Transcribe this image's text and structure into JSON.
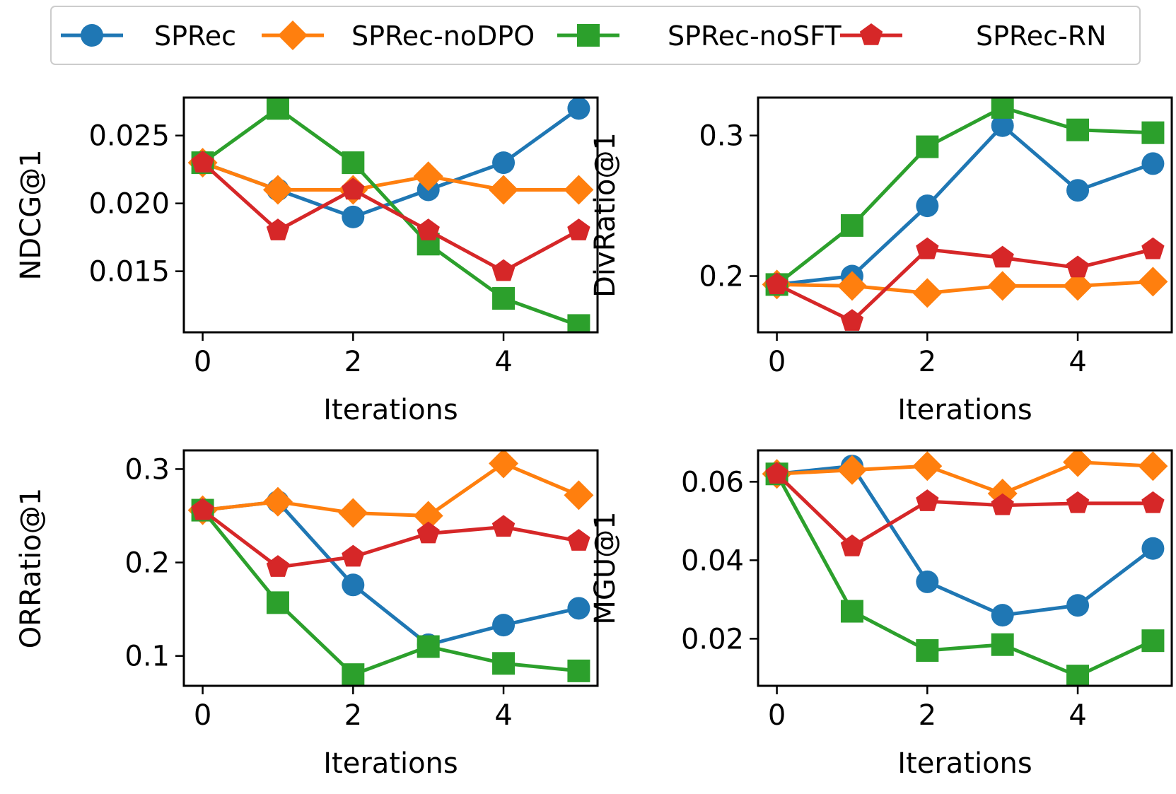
{
  "legend": {
    "placement": "top-center",
    "entries": [
      {
        "name": "SPRec",
        "color": "#1f77b4",
        "marker": "circle"
      },
      {
        "name": "SPRec-noDPO",
        "color": "#ff7f0e",
        "marker": "diamond"
      },
      {
        "name": "SPRec-noSFT",
        "color": "#2ca02c",
        "marker": "square"
      },
      {
        "name": "SPRec-RN",
        "color": "#d62728",
        "marker": "pentagon"
      }
    ]
  },
  "chart_data": [
    {
      "type": "line",
      "xlabel": "Iterations",
      "ylabel": "NDCG@1",
      "x": [
        0,
        1,
        2,
        3,
        4,
        5
      ],
      "xlim": [
        -0.25,
        5.25
      ],
      "ylim": [
        0.0105,
        0.0278
      ],
      "xticks": [
        0,
        2,
        4
      ],
      "xtick_labels": [
        "0",
        "2",
        "4"
      ],
      "yticks": [
        0.015,
        0.02,
        0.025
      ],
      "ytick_labels": [
        "0.015",
        "0.020",
        "0.025"
      ],
      "series": [
        {
          "name": "SPRec",
          "values": [
            0.023,
            0.021,
            0.019,
            0.021,
            0.023,
            0.027
          ]
        },
        {
          "name": "SPRec-noDPO",
          "values": [
            0.023,
            0.021,
            0.021,
            0.022,
            0.021,
            0.021
          ]
        },
        {
          "name": "SPRec-noSFT",
          "values": [
            0.023,
            0.027,
            0.023,
            0.017,
            0.013,
            0.011
          ]
        },
        {
          "name": "SPRec-RN",
          "values": [
            0.023,
            0.018,
            0.021,
            0.018,
            0.015,
            0.018
          ]
        }
      ]
    },
    {
      "type": "line",
      "xlabel": "Iterations",
      "ylabel": "DivRatio@1",
      "x": [
        0,
        1,
        2,
        3,
        4,
        5
      ],
      "xlim": [
        -0.25,
        5.25
      ],
      "ylim": [
        0.16,
        0.327
      ],
      "xticks": [
        0,
        2,
        4
      ],
      "xtick_labels": [
        "0",
        "2",
        "4"
      ],
      "yticks": [
        0.2,
        0.3
      ],
      "ytick_labels": [
        "0.2",
        "0.3"
      ],
      "series": [
        {
          "name": "SPRec",
          "values": [
            0.194,
            0.2,
            0.25,
            0.307,
            0.261,
            0.28
          ]
        },
        {
          "name": "SPRec-noDPO",
          "values": [
            0.194,
            0.193,
            0.188,
            0.193,
            0.193,
            0.196
          ]
        },
        {
          "name": "SPRec-noSFT",
          "values": [
            0.194,
            0.236,
            0.292,
            0.32,
            0.304,
            0.302
          ]
        },
        {
          "name": "SPRec-RN",
          "values": [
            0.194,
            0.168,
            0.219,
            0.213,
            0.206,
            0.219
          ]
        }
      ]
    },
    {
      "type": "line",
      "xlabel": "Iterations",
      "ylabel": "ORRatio@1",
      "x": [
        0,
        1,
        2,
        3,
        4,
        5
      ],
      "xlim": [
        -0.25,
        5.25
      ],
      "ylim": [
        0.068,
        0.32
      ],
      "xticks": [
        0,
        2,
        4
      ],
      "xtick_labels": [
        "0",
        "2",
        "4"
      ],
      "yticks": [
        0.1,
        0.2,
        0.3
      ],
      "ytick_labels": [
        "0.1",
        "0.2",
        "0.3"
      ],
      "series": [
        {
          "name": "SPRec",
          "values": [
            0.256,
            0.265,
            0.176,
            0.112,
            0.133,
            0.151
          ]
        },
        {
          "name": "SPRec-noDPO",
          "values": [
            0.256,
            0.265,
            0.253,
            0.25,
            0.306,
            0.272
          ]
        },
        {
          "name": "SPRec-noSFT",
          "values": [
            0.256,
            0.157,
            0.08,
            0.11,
            0.092,
            0.084
          ]
        },
        {
          "name": "SPRec-RN",
          "values": [
            0.256,
            0.195,
            0.206,
            0.231,
            0.238,
            0.223
          ]
        }
      ]
    },
    {
      "type": "line",
      "xlabel": "Iterations",
      "ylabel": "MGU@1",
      "x": [
        0,
        1,
        2,
        3,
        4,
        5
      ],
      "xlim": [
        -0.25,
        5.25
      ],
      "ylim": [
        0.008,
        0.068
      ],
      "xticks": [
        0,
        2,
        4
      ],
      "xtick_labels": [
        "0",
        "2",
        "4"
      ],
      "yticks": [
        0.02,
        0.04,
        0.06
      ],
      "ytick_labels": [
        "0.02",
        "0.04",
        "0.06"
      ],
      "series": [
        {
          "name": "SPRec",
          "values": [
            0.062,
            0.064,
            0.0345,
            0.026,
            0.0285,
            0.043
          ]
        },
        {
          "name": "SPRec-noDPO",
          "values": [
            0.062,
            0.063,
            0.064,
            0.057,
            0.065,
            0.064
          ]
        },
        {
          "name": "SPRec-noSFT",
          "values": [
            0.062,
            0.027,
            0.017,
            0.0185,
            0.0105,
            0.0195
          ]
        },
        {
          "name": "SPRec-RN",
          "values": [
            0.062,
            0.0435,
            0.055,
            0.054,
            0.0545,
            0.0545
          ]
        }
      ]
    }
  ]
}
